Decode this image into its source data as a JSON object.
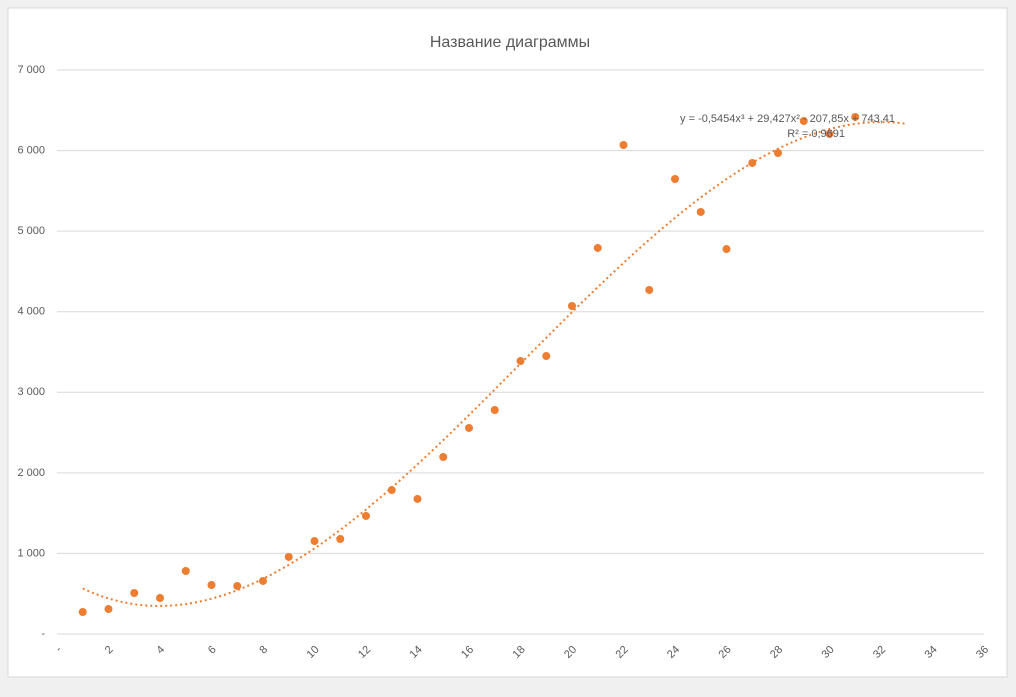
{
  "chart_data": {
    "type": "scatter",
    "title": "Название диаграммы",
    "x": [
      1,
      2,
      3,
      4,
      5,
      6,
      7,
      8,
      9,
      10,
      11,
      12,
      13,
      14,
      15,
      16,
      17,
      18,
      19,
      20,
      21,
      22,
      23,
      24,
      25,
      26,
      27,
      28,
      29,
      30,
      31
    ],
    "values": [
      273,
      310,
      509,
      447,
      782,
      608,
      596,
      658,
      956,
      1154,
      1179,
      1465,
      1787,
      1676,
      2197,
      2557,
      2780,
      3388,
      3450,
      4071,
      4791,
      6069,
      4270,
      5647,
      5238,
      4778,
      5846,
      5970,
      6367,
      6206,
      6417
    ],
    "color": "#ED7D31",
    "xlim": [
      0,
      36
    ],
    "xticks": [
      {
        "value": 0,
        "label": "-"
      },
      2,
      4,
      6,
      8,
      10,
      12,
      14,
      16,
      18,
      20,
      22,
      24,
      26,
      28,
      30,
      32,
      34,
      36
    ],
    "ylim": [
      0,
      7000
    ],
    "yticks": [
      {
        "value": 0,
        "label": "-"
      },
      {
        "value": 1000,
        "label": "1 000"
      },
      {
        "value": 2000,
        "label": "2 000"
      },
      {
        "value": 3000,
        "label": "3 000"
      },
      {
        "value": 4000,
        "label": "4 000"
      },
      {
        "value": 5000,
        "label": "5 000"
      },
      {
        "value": 6000,
        "label": "6 000"
      },
      {
        "value": 7000,
        "label": "7 000"
      }
    ],
    "grid": true,
    "trendline": {
      "type": "polynomial",
      "coefficients": [
        -0.5454,
        29.427,
        -207.85,
        743.41
      ],
      "range": [
        1,
        33
      ],
      "equation": "y = -0,5454x³ + 29,427x² - 207,85x + 743,41",
      "r2": {
        "value": 0.9691,
        "label": "R² = 0,9691"
      }
    }
  }
}
